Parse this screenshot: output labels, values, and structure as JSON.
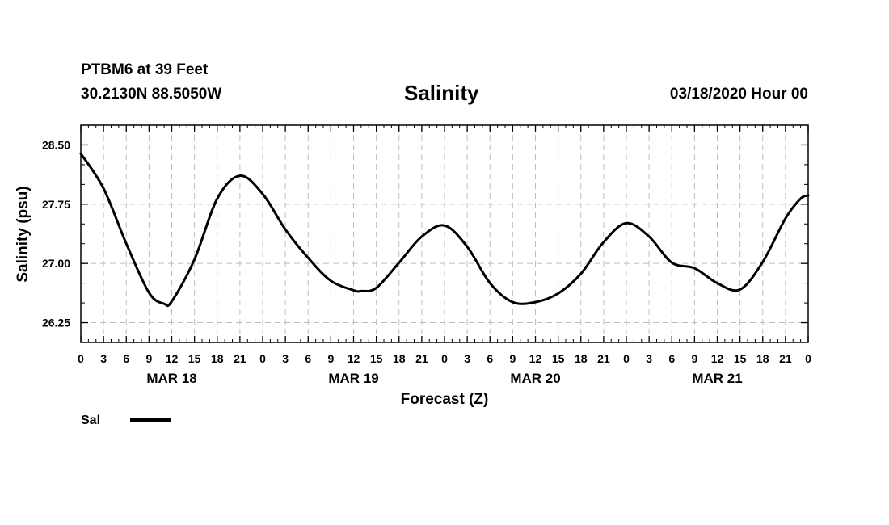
{
  "header": {
    "station_line": "PTBM6 at 39 Feet",
    "coords_line": "30.2130N 88.5050W",
    "title": "Salinity",
    "forecast_time": "03/18/2020 Hour 00"
  },
  "chart_data": {
    "type": "line",
    "title": "Salinity",
    "xlabel": "Forecast (Z)",
    "ylabel": "Salinity (psu)",
    "xlim": [
      0,
      96
    ],
    "ylim": [
      26.0,
      28.75
    ],
    "y_ticks": [
      26.25,
      27.0,
      27.75,
      28.5
    ],
    "y_tick_labels": [
      "26.25",
      "27.00",
      "27.75",
      "28.50"
    ],
    "x_ticks": [
      0,
      3,
      6,
      9,
      12,
      15,
      18,
      21,
      24,
      27,
      30,
      33,
      36,
      39,
      42,
      45,
      48,
      51,
      54,
      57,
      60,
      63,
      66,
      69,
      72,
      75,
      78,
      81,
      84,
      87,
      90,
      93,
      96
    ],
    "x_tick_labels": [
      "0",
      "3",
      "6",
      "9",
      "12",
      "15",
      "18",
      "21",
      "0",
      "3",
      "6",
      "9",
      "12",
      "15",
      "18",
      "21",
      "0",
      "3",
      "6",
      "9",
      "12",
      "15",
      "18",
      "21",
      "0",
      "3",
      "6",
      "9",
      "12",
      "15",
      "18",
      "21",
      "0"
    ],
    "day_labels": [
      {
        "label": "MAR 18",
        "hour": 12
      },
      {
        "label": "MAR 19",
        "hour": 36
      },
      {
        "label": "MAR 20",
        "hour": 60
      },
      {
        "label": "MAR 21",
        "hour": 84
      }
    ],
    "grid": true,
    "series": [
      {
        "name": "Sal",
        "color": "#000000",
        "x": [
          0,
          3,
          6,
          9,
          11,
          12,
          15,
          18,
          21,
          24,
          27,
          30,
          33,
          36,
          37,
          39,
          42,
          45,
          48,
          51,
          54,
          57,
          60,
          63,
          66,
          69,
          72,
          75,
          78,
          81,
          84,
          87,
          90,
          93,
          95,
          96
        ],
        "y": [
          28.39,
          27.95,
          27.25,
          26.63,
          26.49,
          26.52,
          27.05,
          27.82,
          28.11,
          27.88,
          27.43,
          27.07,
          26.78,
          26.66,
          26.65,
          26.69,
          27.01,
          27.34,
          27.48,
          27.21,
          26.75,
          26.51,
          26.51,
          26.62,
          26.87,
          27.27,
          27.51,
          27.34,
          27.01,
          26.94,
          26.75,
          26.67,
          27.02,
          27.57,
          27.82,
          27.86
        ]
      }
    ],
    "legend": {
      "label": "Sal",
      "position": "bottom-left"
    }
  }
}
